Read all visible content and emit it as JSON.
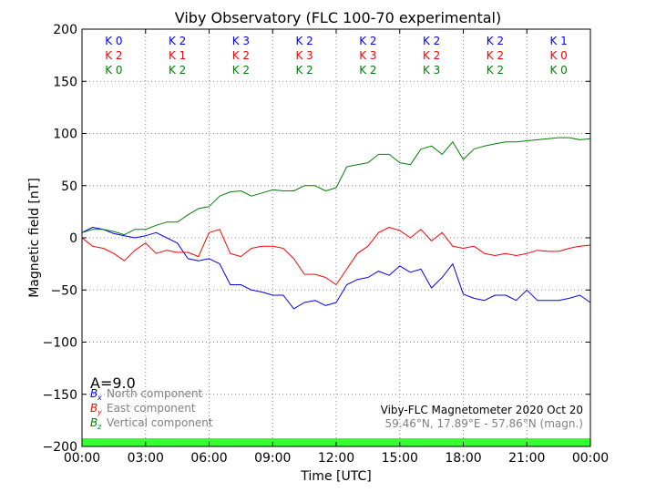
{
  "chart_data": {
    "type": "line",
    "title": "Viby Observatory (FLC 100-70 experimental)",
    "xlabel": "Time [UTC]",
    "ylabel": "Magnetic field [nT]",
    "xlim": [
      0,
      24
    ],
    "ylim": [
      -200,
      200
    ],
    "grid": true,
    "x_tick_labels": [
      "00:00",
      "03:00",
      "06:00",
      "09:00",
      "12:00",
      "15:00",
      "18:00",
      "21:00",
      "00:00"
    ],
    "y_ticks": [
      200,
      150,
      100,
      50,
      0,
      -50,
      -100,
      -150,
      -200
    ],
    "y_tick_labels": [
      "200",
      "150",
      "100",
      "50",
      "0",
      "−50",
      "−100",
      "−150",
      "−200"
    ],
    "k_index_rows": [
      {
        "component": "x",
        "labels": [
          "K 0",
          "K 2",
          "K 3",
          "K 2",
          "K 2",
          "K 2",
          "K 2",
          "K 1"
        ]
      },
      {
        "component": "y",
        "labels": [
          "K 2",
          "K 1",
          "K 2",
          "K 3",
          "K 3",
          "K 2",
          "K 2",
          "K 0"
        ]
      },
      {
        "component": "z",
        "labels": [
          "K 0",
          "K 2",
          "K 2",
          "K 2",
          "K 2",
          "K 3",
          "K 2",
          "K 0"
        ]
      }
    ],
    "activity_label": "A=9.0",
    "legend_position": "bottom-left",
    "series": [
      {
        "name": "North component",
        "symbol": "B",
        "subscript": "x",
        "color": "#0000ff",
        "x": [
          0,
          0.5,
          1,
          1.5,
          2,
          2.5,
          3,
          3.5,
          4,
          4.5,
          5,
          5.5,
          6,
          6.5,
          7,
          7.5,
          8,
          8.5,
          9,
          9.5,
          10,
          10.5,
          11,
          11.5,
          12,
          12.5,
          13,
          13.5,
          14,
          14.5,
          15,
          15.5,
          16,
          16.5,
          17,
          17.5,
          18,
          18.5,
          19,
          19.5,
          20,
          20.5,
          21,
          21.5,
          22,
          22.5,
          23,
          23.5,
          24
        ],
        "values": [
          5,
          10,
          8,
          4,
          2,
          0,
          2,
          5,
          0,
          -5,
          -20,
          -22,
          -20,
          -25,
          -45,
          -45,
          -50,
          -52,
          -55,
          -55,
          -68,
          -62,
          -60,
          -65,
          -62,
          -45,
          -40,
          -38,
          -32,
          -36,
          -27,
          -33,
          -30,
          -48,
          -38,
          -25,
          -54,
          -58,
          -60,
          -55,
          -55,
          -60,
          -50,
          -60,
          -60,
          -60,
          -58,
          -55,
          -62
        ]
      },
      {
        "name": "East component",
        "symbol": "B",
        "subscript": "y",
        "color": "#ff0000",
        "x": [
          0,
          0.5,
          1,
          1.5,
          2,
          2.5,
          3,
          3.5,
          4,
          4.5,
          5,
          5.5,
          6,
          6.5,
          7,
          7.5,
          8,
          8.5,
          9,
          9.5,
          10,
          10.5,
          11,
          11.5,
          12,
          12.5,
          13,
          13.5,
          14,
          14.5,
          15,
          15.5,
          16,
          16.5,
          17,
          17.5,
          18,
          18.5,
          19,
          19.5,
          20,
          20.5,
          21,
          21.5,
          22,
          22.5,
          23,
          23.5,
          24
        ],
        "values": [
          0,
          -8,
          -10,
          -15,
          -22,
          -12,
          -5,
          -15,
          -12,
          -14,
          -14,
          -18,
          5,
          8,
          -15,
          -18,
          -10,
          -8,
          -8,
          -10,
          -20,
          -35,
          -35,
          -38,
          -45,
          -30,
          -15,
          -8,
          5,
          10,
          7,
          0,
          8,
          -3,
          5,
          -8,
          -10,
          -8,
          -15,
          -17,
          -15,
          -17,
          -15,
          -12,
          -13,
          -13,
          -10,
          -8,
          -7
        ]
      },
      {
        "name": "Vertical component",
        "symbol": "B",
        "subscript": "z",
        "color": "#008000",
        "x": [
          0,
          0.5,
          1,
          1.5,
          2,
          2.5,
          3,
          3.5,
          4,
          4.5,
          5,
          5.5,
          6,
          6.5,
          7,
          7.5,
          8,
          8.5,
          9,
          9.5,
          10,
          10.5,
          11,
          11.5,
          12,
          12.5,
          13,
          13.5,
          14,
          14.5,
          15,
          15.5,
          16,
          16.5,
          17,
          17.5,
          18,
          18.5,
          19,
          19.5,
          20,
          20.5,
          21,
          21.5,
          22,
          22.5,
          23,
          23.5,
          24
        ],
        "values": [
          5,
          8,
          8,
          6,
          3,
          8,
          8,
          12,
          15,
          15,
          22,
          28,
          30,
          40,
          44,
          45,
          40,
          43,
          46,
          45,
          45,
          50,
          50,
          45,
          48,
          68,
          70,
          72,
          80,
          80,
          72,
          70,
          85,
          88,
          80,
          92,
          75,
          85,
          88,
          90,
          92,
          92,
          93,
          94,
          95,
          96,
          96,
          94,
          95
        ]
      }
    ]
  },
  "footer": {
    "instrument": "Viby-FLC Magnetometer 2020 Oct 20",
    "coordinates": "59.46°N, 17.89°E - 57.86°N (magn.)"
  },
  "colors": {
    "status_bar": "#33ff33",
    "grid": "#888888",
    "k_x": "#0000ff",
    "k_y": "#ff0000",
    "k_z": "#008000",
    "legend_text": "#808080"
  }
}
